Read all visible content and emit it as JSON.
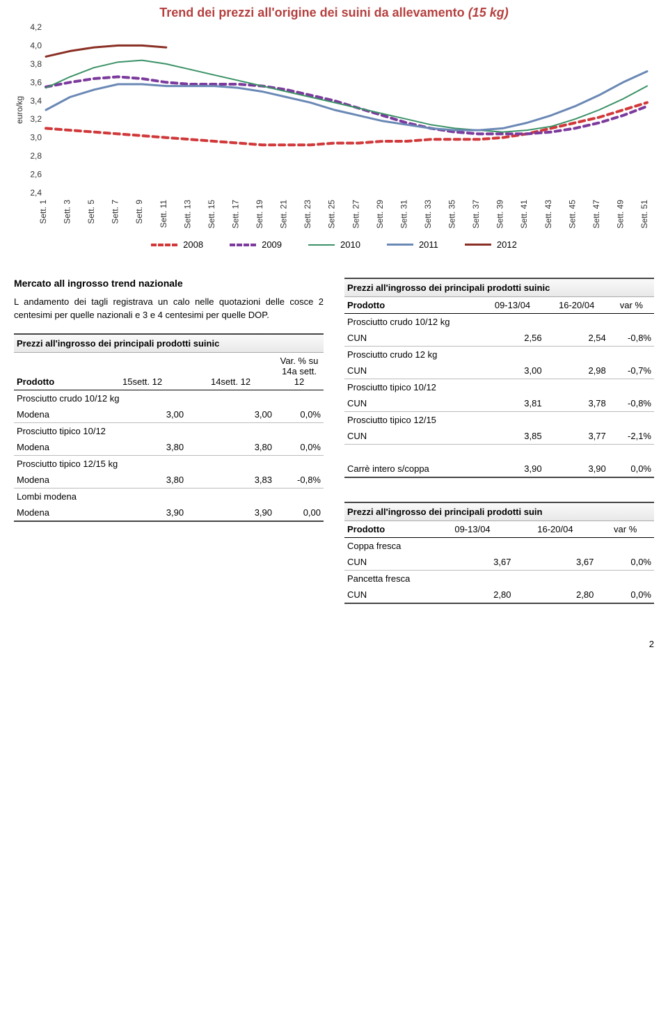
{
  "chart": {
    "title_main": "Trend dei prezzi all'origine dei suini da allevamento",
    "title_sub": "(15 kg)",
    "type": "line",
    "ylabel": "euro/kg",
    "ylim": [
      2.4,
      4.2
    ],
    "ytick_step": 0.2,
    "yticks": [
      "4,2",
      "4,0",
      "3,8",
      "3,6",
      "3,4",
      "3,2",
      "3,0",
      "2,8",
      "2,6",
      "2,4"
    ],
    "xticks": [
      "Sett. 1",
      "Sett. 3",
      "Sett. 5",
      "Sett. 7",
      "Sett. 9",
      "Sett. 11",
      "Sett. 13",
      "Sett. 15",
      "Sett. 17",
      "Sett. 19",
      "Sett. 21",
      "Sett. 23",
      "Sett. 25",
      "Sett. 27",
      "Sett. 29",
      "Sett. 31",
      "Sett. 33",
      "Sett. 35",
      "Sett. 37",
      "Sett. 39",
      "Sett. 41",
      "Sett. 43",
      "Sett. 45",
      "Sett. 47",
      "Sett. 49",
      "Sett. 51"
    ],
    "background_color": "#ffffff",
    "grid": false,
    "title_color": "#b5403f",
    "title_fontsize": 18,
    "axis_fontsize": 12,
    "series": [
      {
        "name": "2008",
        "color": "#d1383a",
        "dash": "8,6",
        "width": 4,
        "data": [
          3.1,
          3.08,
          3.06,
          3.04,
          3.02,
          3.0,
          2.98,
          2.96,
          2.94,
          2.92,
          2.92,
          2.92,
          2.94,
          2.94,
          2.96,
          2.96,
          2.98,
          2.98,
          2.98,
          3.0,
          3.04,
          3.1,
          3.16,
          3.22,
          3.3,
          3.38
        ]
      },
      {
        "name": "2009",
        "color": "#7b3a9c",
        "dash": "8,6",
        "width": 4,
        "data": [
          3.55,
          3.6,
          3.64,
          3.66,
          3.64,
          3.6,
          3.58,
          3.58,
          3.58,
          3.56,
          3.52,
          3.46,
          3.4,
          3.32,
          3.24,
          3.16,
          3.1,
          3.06,
          3.04,
          3.04,
          3.04,
          3.06,
          3.1,
          3.16,
          3.24,
          3.34
        ]
      },
      {
        "name": "2010",
        "color": "#3a9166",
        "dash": "none",
        "width": 2,
        "data": [
          3.54,
          3.66,
          3.76,
          3.82,
          3.84,
          3.8,
          3.74,
          3.68,
          3.62,
          3.56,
          3.5,
          3.44,
          3.38,
          3.32,
          3.26,
          3.2,
          3.14,
          3.1,
          3.08,
          3.06,
          3.08,
          3.12,
          3.2,
          3.3,
          3.42,
          3.56
        ]
      },
      {
        "name": "2011",
        "color": "#6a88b5",
        "dash": "none",
        "width": 3,
        "data": [
          3.3,
          3.44,
          3.52,
          3.58,
          3.58,
          3.56,
          3.56,
          3.56,
          3.54,
          3.5,
          3.44,
          3.38,
          3.3,
          3.24,
          3.18,
          3.14,
          3.1,
          3.08,
          3.08,
          3.1,
          3.16,
          3.24,
          3.34,
          3.46,
          3.6,
          3.72
        ]
      },
      {
        "name": "2012",
        "color": "#8a2f24",
        "dash": "none",
        "width": 3,
        "data": [
          3.88,
          3.94,
          3.98,
          4.0,
          4.0,
          3.98
        ],
        "partial": true
      }
    ],
    "legend_items": [
      {
        "label": "2008",
        "color": "#d1383a",
        "dash": true,
        "width": 4
      },
      {
        "label": "2009",
        "color": "#7b3a9c",
        "dash": true,
        "width": 4
      },
      {
        "label": "2010",
        "color": "#3a9166",
        "dash": false,
        "width": 2
      },
      {
        "label": "2011",
        "color": "#6a88b5",
        "dash": false,
        "width": 3
      },
      {
        "label": "2012",
        "color": "#8a2f24",
        "dash": false,
        "width": 3
      }
    ]
  },
  "left": {
    "heading": "Mercato all ingrosso trend nazionale",
    "paragraph": "L andamento dei tagli registrava un calo nelle quotazioni delle cosce 2 centesimi per quelle nazionali e 3 e 4 centesimi per quelle DOP.",
    "table_title": "Prezzi all'ingrosso dei principali prodotti suinic",
    "columns": {
      "c0": "Prodotto",
      "c1": "15sett. 12",
      "c2": "14sett. 12",
      "c3": "Var. % su 14a sett. 12"
    },
    "rows": [
      {
        "section": "Prosciutto crudo 10/12 kg"
      },
      {
        "label": "Modena",
        "v1": "3,00",
        "v2": "3,00",
        "v3": "0,0%"
      },
      {
        "section": "Prosciutto tipico 10/12"
      },
      {
        "label": "Modena",
        "v1": "3,80",
        "v2": "3,80",
        "v3": "0,0%"
      },
      {
        "section": "Prosciutto tipico 12/15 kg"
      },
      {
        "label": "Modena",
        "v1": "3,80",
        "v2": "3,83",
        "v3": "-0,8%"
      },
      {
        "section": "Lombi modena"
      },
      {
        "label": "Modena",
        "v1": "3,90",
        "v2": "3,90",
        "v3": "0,00"
      }
    ]
  },
  "right_top": {
    "table_title": "Prezzi all'ingrosso dei principali prodotti suinic",
    "columns": {
      "c0": "Prodotto",
      "c1": "09-13/04",
      "c2": "16-20/04",
      "c3": "var %"
    },
    "rows": [
      {
        "section": "Prosciutto crudo 10/12 kg"
      },
      {
        "label": "CUN",
        "v1": "2,56",
        "v2": "2,54",
        "v3": "-0,8%"
      },
      {
        "section": "Prosciutto crudo 12 kg"
      },
      {
        "label": "CUN",
        "v1": "3,00",
        "v2": "2,98",
        "v3": "-0,7%"
      },
      {
        "section": "Prosciutto tipico 10/12"
      },
      {
        "label": "CUN",
        "v1": "3,81",
        "v2": "3,78",
        "v3": "-0,8%"
      },
      {
        "section": "Prosciutto tipico 12/15"
      },
      {
        "label": "CUN",
        "v1": "3,85",
        "v2": "3,77",
        "v3": "-2,1%"
      },
      {
        "blank": true
      },
      {
        "label": "Carrè intero s/coppa",
        "v1": "3,90",
        "v2": "3,90",
        "v3": "0,0%"
      }
    ]
  },
  "right_bottom": {
    "table_title": "Prezzi all'ingrosso dei principali prodotti suin",
    "columns": {
      "c0": "Prodotto",
      "c1": "09-13/04",
      "c2": "16-20/04",
      "c3": "var %"
    },
    "rows": [
      {
        "section": "Coppa fresca"
      },
      {
        "label": "CUN",
        "v1": "3,67",
        "v2": "3,67",
        "v3": "0,0%"
      },
      {
        "section": "Pancetta fresca"
      },
      {
        "label": "CUN",
        "v1": "2,80",
        "v2": "2,80",
        "v3": "0,0%"
      }
    ]
  },
  "page_number": "2"
}
